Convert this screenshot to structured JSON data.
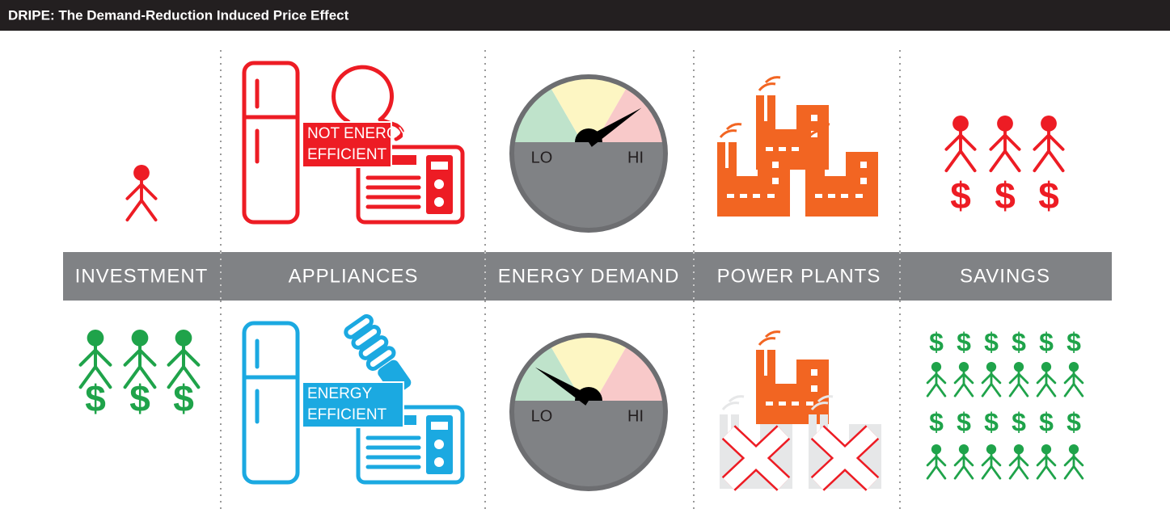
{
  "header": {
    "title": "DRIPE: The Demand-Reduction Induced Price Effect"
  },
  "columns": [
    {
      "label": "INVESTMENT"
    },
    {
      "label": "APPLIANCES"
    },
    {
      "label": "ENERGY DEMAND"
    },
    {
      "label": "POWER PLANTS"
    },
    {
      "label": "SAVINGS"
    }
  ],
  "top_row": {
    "appliance_tag": [
      "NOT ENERGY",
      "EFFICIENT"
    ]
  },
  "bottom_row": {
    "appliance_tag": [
      "ENERGY",
      "EFFICIENT"
    ]
  },
  "gauge_labels": {
    "low": "LO",
    "high": "HI"
  },
  "currency_symbol": "$"
}
